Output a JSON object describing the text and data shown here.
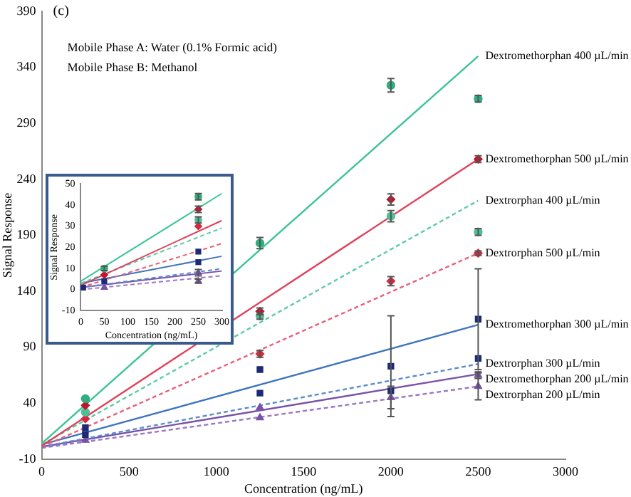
{
  "chart_data": [
    {
      "type": "scatter",
      "xlabel": "Concentration (ng/mL)",
      "ylabel": "Signal Response",
      "annotations": [
        "(c)",
        "Mobile Phase A: Water (0.1% Formic acid)",
        "Mobile Phase B: Methanol"
      ],
      "x": [
        250,
        1250,
        2000,
        2500
      ],
      "xlim": [
        0,
        3000
      ],
      "xticks": [
        0,
        500,
        1000,
        1500,
        2000,
        2500,
        3000
      ],
      "ylim": [
        -10,
        390
      ],
      "yticks": [
        -10,
        40,
        90,
        140,
        190,
        240,
        290,
        340,
        390
      ],
      "series": [
        {
          "color": "#2fae7e",
          "marker": "circle",
          "values": [
            44,
            183,
            324,
            312
          ],
          "errors": [
            null,
            5,
            6,
            3
          ]
        },
        {
          "color": "#c0152a",
          "marker": "diamond",
          "values": [
            38,
            122,
            222,
            258
          ],
          "errors": [
            null,
            3,
            5,
            3
          ]
        },
        {
          "color": "#4fbf96",
          "marker": "circle",
          "values": [
            32,
            118,
            207,
            193
          ],
          "errors": [
            null,
            3,
            5,
            3
          ]
        },
        {
          "color": "#d42a40",
          "marker": "diamond",
          "values": [
            26,
            84,
            149,
            174
          ],
          "errors": [
            null,
            3,
            4,
            2
          ]
        },
        {
          "color": "#1c2a78",
          "marker": "square",
          "values": [
            18,
            70,
            73,
            115
          ],
          "errors": [
            null,
            null,
            45,
            45
          ]
        },
        {
          "color": "#1c2a78",
          "marker": "square",
          "values": [
            12,
            49,
            51,
            80
          ]
        },
        {
          "color": "#7a52a8",
          "marker": "triangle",
          "values": [
            7,
            36,
            null,
            65
          ],
          "errors": [
            null,
            null,
            null,
            3
          ]
        },
        {
          "color": "#7a52a8",
          "marker": "triangle",
          "values": [
            null,
            27,
            45,
            55
          ],
          "errors": [
            null,
            null,
            10,
            12
          ]
        },
        {
          "type": "line",
          "name": "Dextromethorphan 400 µL/min",
          "color": "#3cc493",
          "line_style": "solid",
          "x": [
            0,
            2500
          ],
          "values": [
            4,
            350
          ]
        },
        {
          "type": "line",
          "name": "Dextromethorphan 500 µL/min",
          "color": "#e0405a",
          "line_style": "solid",
          "x": [
            0,
            2500
          ],
          "values": [
            2,
            258
          ]
        },
        {
          "type": "line",
          "name": "Dextrorphan 400 µL/min",
          "color": "#5ccca3",
          "line_style": "dashed",
          "x": [
            0,
            2500
          ],
          "values": [
            3,
            221
          ]
        },
        {
          "type": "line",
          "name": "Dextrorphan 500 µL/min",
          "color": "#e8607a",
          "line_style": "dashed",
          "x": [
            0,
            2500
          ],
          "values": [
            1,
            174
          ]
        },
        {
          "type": "line",
          "name": "Dextromethorphan 300 µL/min",
          "color": "#3f74bf",
          "line_style": "solid",
          "x": [
            0,
            2500
          ],
          "values": [
            3,
            110
          ]
        },
        {
          "type": "line",
          "name": "Dextrorphan 300 µL/min",
          "color": "#5a8ccc",
          "line_style": "dashed",
          "x": [
            0,
            2500
          ],
          "values": [
            1,
            75
          ]
        },
        {
          "type": "line",
          "name": "Dextromethorphan 200 µL/min",
          "color": "#7a52a8",
          "line_style": "solid",
          "x": [
            0,
            2500
          ],
          "values": [
            1,
            66
          ]
        },
        {
          "type": "line",
          "name": "Dextrorphan 200 µL/min",
          "color": "#9a78c4",
          "line_style": "dashed",
          "x": [
            0,
            2500
          ],
          "values": [
            0,
            55
          ]
        }
      ]
    },
    {
      "type": "scatter",
      "xlabel": "Concentration (ng/mL)",
      "ylabel": "Signal Response",
      "x": [
        5,
        50,
        250
      ],
      "xlim": [
        0,
        300
      ],
      "xticks": [
        0,
        50,
        100,
        150,
        200,
        250,
        300
      ],
      "ylim": [
        -10,
        50
      ],
      "yticks": [
        -10,
        0,
        10,
        20,
        30,
        40,
        50
      ],
      "series": [
        {
          "color": "#2fae7e",
          "marker": "circle",
          "values": [
            null,
            10,
            44
          ],
          "errors": [
            null,
            1,
            1.5
          ]
        },
        {
          "color": "#c0152a",
          "marker": "diamond",
          "values": [
            null,
            7,
            38
          ],
          "errors": [
            null,
            null,
            1.5
          ]
        },
        {
          "color": "#4fbf96",
          "marker": "circle",
          "values": [
            null,
            null,
            33
          ],
          "errors": [
            null,
            null,
            1.5
          ]
        },
        {
          "color": "#d42a40",
          "marker": "diamond",
          "values": [
            null,
            null,
            30
          ]
        },
        {
          "color": "#1c2a78",
          "marker": "square",
          "values": [
            1,
            4,
            18
          ]
        },
        {
          "color": "#1c2a78",
          "marker": "square",
          "values": [
            null,
            null,
            13
          ]
        },
        {
          "color": "#7a52a8",
          "marker": "triangle",
          "values": [
            null,
            1,
            8
          ],
          "errors": [
            null,
            null,
            1.5
          ]
        },
        {
          "color": "#7a52a8",
          "marker": "triangle",
          "values": [
            null,
            null,
            4
          ],
          "errors": [
            null,
            null,
            1
          ]
        },
        {
          "type": "line",
          "color": "#3cc493",
          "line_style": "solid",
          "x": [
            0,
            300
          ],
          "values": [
            4,
            45.5
          ]
        },
        {
          "type": "line",
          "color": "#e0405a",
          "line_style": "solid",
          "x": [
            0,
            300
          ],
          "values": [
            2,
            32.7
          ]
        },
        {
          "type": "line",
          "color": "#5ccca3",
          "line_style": "dashed",
          "x": [
            0,
            300
          ],
          "values": [
            3,
            29.2
          ]
        },
        {
          "type": "line",
          "color": "#e8607a",
          "line_style": "dashed",
          "x": [
            0,
            300
          ],
          "values": [
            1,
            21.8
          ]
        },
        {
          "type": "line",
          "color": "#3f74bf",
          "line_style": "solid",
          "x": [
            0,
            300
          ],
          "values": [
            3,
            15.8
          ]
        },
        {
          "type": "line",
          "color": "#5a8ccc",
          "line_style": "dashed",
          "x": [
            0,
            300
          ],
          "values": [
            1,
            9.9
          ]
        },
        {
          "type": "line",
          "color": "#7a52a8",
          "line_style": "solid",
          "x": [
            0,
            300
          ],
          "values": [
            1,
            8.8
          ]
        },
        {
          "type": "line",
          "color": "#9a78c4",
          "line_style": "dashed",
          "x": [
            0,
            300
          ],
          "values": [
            0,
            6.6
          ]
        }
      ]
    }
  ]
}
